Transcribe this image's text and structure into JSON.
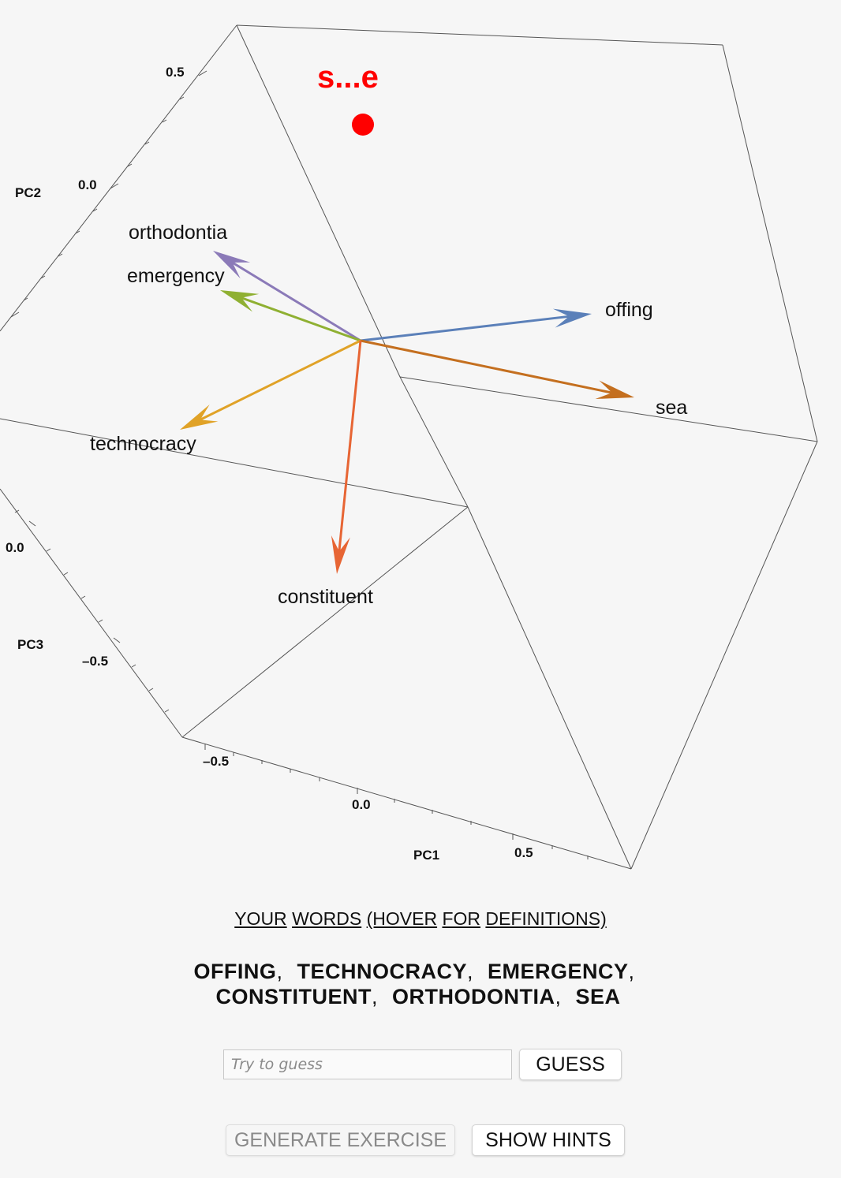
{
  "target": {
    "hint_text": "s...e",
    "color": "#ff0000"
  },
  "axes": {
    "pc1": {
      "label": "PC1",
      "ticks": [
        "–0.5",
        "0.0",
        "0.5"
      ]
    },
    "pc2": {
      "label": "PC2",
      "ticks": [
        "0.0",
        "0.5"
      ]
    },
    "pc3": {
      "label": "PC3",
      "ticks": [
        "0.0",
        "–0.5"
      ]
    }
  },
  "vectors": [
    {
      "word": "orthodontia",
      "color": "#8b7ab8"
    },
    {
      "word": "emergency",
      "color": "#8fb032"
    },
    {
      "word": "offing",
      "color": "#5b80b9"
    },
    {
      "word": "sea",
      "color": "#c46f1f"
    },
    {
      "word": "technocracy",
      "color": "#e0a227"
    },
    {
      "word": "constituent",
      "color": "#e76534"
    }
  ],
  "words_header": [
    "YOUR",
    "WORDS",
    "(HOVER",
    "FOR",
    "DEFINITIONS)"
  ],
  "word_list": {
    "line1": [
      "OFFING",
      "TECHNOCRACY",
      "EMERGENCY"
    ],
    "line2": [
      "CONSTITUENT",
      "ORTHODONTIA",
      "SEA"
    ]
  },
  "guess": {
    "placeholder": "Try to guess",
    "value": "",
    "button_label": "GUESS"
  },
  "buttons": {
    "generate_label": "GENERATE EXERCISE",
    "generate_disabled": true,
    "hints_label": "SHOW HINTS"
  }
}
